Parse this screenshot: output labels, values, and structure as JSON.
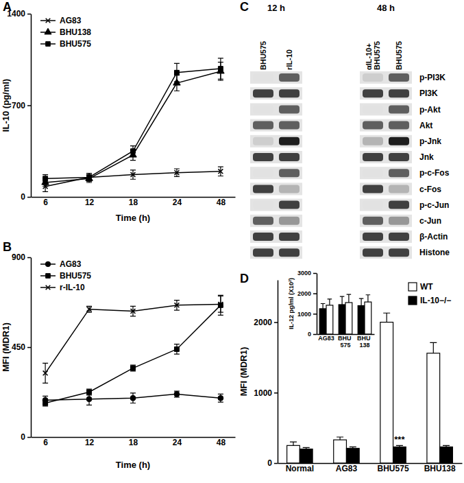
{
  "chart_data": [
    {
      "type": "line",
      "title": "A",
      "categories": [
        "6",
        "12",
        "18",
        "24",
        "48"
      ],
      "xlabel": "Time (h)",
      "ylabel": "IL-10 (pg/ml)",
      "ylim": [
        0,
        1400
      ],
      "yticks": [
        0,
        700,
        1400
      ],
      "legend": "top-left",
      "series": [
        {
          "name": "AG83",
          "color": "#000000",
          "marker": "x",
          "values": [
            80,
            150,
            170,
            185,
            195
          ],
          "errors": [
            40,
            30,
            35,
            30,
            35
          ]
        },
        {
          "name": "BHU138",
          "color": "#000000",
          "marker": "triangle",
          "values": [
            110,
            140,
            320,
            870,
            960
          ],
          "errors": [
            30,
            30,
            40,
            60,
            70
          ]
        },
        {
          "name": "BHU575",
          "color": "#000000",
          "marker": "square",
          "values": [
            140,
            150,
            350,
            950,
            980
          ],
          "errors": [
            30,
            30,
            40,
            70,
            80
          ]
        }
      ]
    },
    {
      "type": "line",
      "title": "B",
      "categories": [
        "6",
        "12",
        "18",
        "24",
        "48"
      ],
      "xlabel": "Time (h)",
      "ylabel": "MFI (MDR1)",
      "ylim": [
        0,
        900
      ],
      "yticks": [
        0,
        450,
        900
      ],
      "legend": "top-left",
      "series": [
        {
          "name": "AG83",
          "color": "#000000",
          "marker": "circle",
          "values": [
            185,
            190,
            195,
            215,
            195
          ],
          "errors": [
            20,
            30,
            25,
            15,
            20
          ]
        },
        {
          "name": "BHU575",
          "color": "#000000",
          "marker": "square",
          "values": [
            170,
            225,
            345,
            440,
            660
          ],
          "errors": [
            15,
            15,
            15,
            25,
            50
          ]
        },
        {
          "name": "r-IL-10",
          "color": "#000000",
          "marker": "x",
          "values": [
            320,
            640,
            630,
            660,
            665
          ],
          "errors": [
            50,
            15,
            25,
            25,
            40
          ]
        }
      ]
    },
    {
      "type": "blot",
      "title": "C",
      "groups": [
        {
          "label": "12 h",
          "columns": [
            "BHU575",
            "rIL-10"
          ]
        },
        {
          "label": "48 h",
          "columns": [
            "αIL-10+ BHU575",
            "BHU575"
          ]
        }
      ],
      "rows": [
        "p-PI3K",
        "PI3K",
        "p-Akt",
        "Akt",
        "p-Jnk",
        "Jnk",
        "p-c-Fos",
        "c-Fos",
        "p-c-Jun",
        "c-Jun",
        "β-Actin",
        "Histone"
      ],
      "cells": [
        [
          0.2,
          0.7,
          0.3,
          0.7
        ],
        [
          0.8,
          0.8,
          0.8,
          0.8
        ],
        [
          0.2,
          0.7,
          0.2,
          0.7
        ],
        [
          0.7,
          0.7,
          0.7,
          0.7
        ],
        [
          0.3,
          0.9,
          0.4,
          0.9
        ],
        [
          0.8,
          0.8,
          0.8,
          0.8
        ],
        [
          0.2,
          0.7,
          0.2,
          0.7
        ],
        [
          0.8,
          0.4,
          0.8,
          0.4
        ],
        [
          0.2,
          0.8,
          0.2,
          0.8
        ],
        [
          0.7,
          0.5,
          0.7,
          0.5
        ],
        [
          0.8,
          0.8,
          0.8,
          0.8
        ],
        [
          0.8,
          0.8,
          0.8,
          0.8
        ]
      ]
    },
    {
      "type": "bar",
      "title": "D",
      "categories": [
        "Normal",
        "AG83",
        "BHU575",
        "BHU138"
      ],
      "ylabel": "MFI (MDR1)",
      "ylim": [
        0,
        2600
      ],
      "yticks": [
        0,
        1000,
        2000
      ],
      "legend": "top-right",
      "series": [
        {
          "name": "WT",
          "color": "#ffffff",
          "values": [
            250,
            330,
            2000,
            1560
          ],
          "errors": [
            50,
            40,
            130,
            150
          ]
        },
        {
          "name": "IL-10−/−",
          "color": "#000000",
          "values": [
            200,
            210,
            230,
            230
          ],
          "errors": [
            20,
            20,
            20,
            20
          ]
        }
      ],
      "annotations": [
        {
          "text": "***",
          "category": "BHU575",
          "series": "IL-10−/−"
        }
      ]
    },
    {
      "type": "bar",
      "categories": [
        "AG83",
        "BHU 575",
        "BHU 138"
      ],
      "ylabel": "IL-12 pg/ml (X10²)",
      "ylim": [
        0,
        3000
      ],
      "yticks": [
        0,
        1000,
        2000,
        3000
      ],
      "series": [
        {
          "color": "#000000",
          "values": [
            1250,
            1450,
            1400
          ],
          "errors": [
            250,
            400,
            350
          ]
        },
        {
          "color": "#ffffff",
          "values": [
            1420,
            1550,
            1580
          ],
          "errors": [
            300,
            400,
            350
          ]
        }
      ]
    }
  ]
}
